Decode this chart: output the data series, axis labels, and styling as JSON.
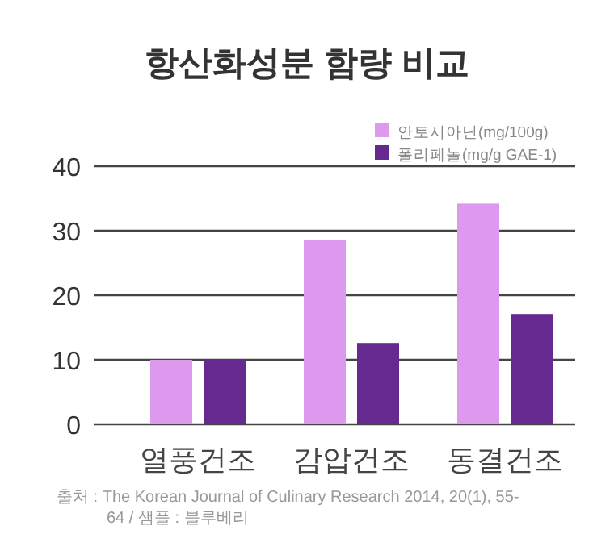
{
  "chart_data": {
    "type": "bar",
    "title": "항산화성분 함량 비교",
    "categories": [
      "열풍건조",
      "감압건조",
      "동결건조"
    ],
    "series": [
      {
        "name": "안토시아닌(mg/100g)",
        "color": "#dd99ee",
        "values": [
          10.0,
          28.5,
          34.2
        ]
      },
      {
        "name": "폴리페놀(mg/g GAE-1)",
        "color": "#66298f",
        "values": [
          10.0,
          12.6,
          17.1
        ]
      }
    ],
    "ylim": [
      0,
      40
    ],
    "yticks": [
      0,
      10,
      20,
      30,
      40
    ],
    "grid": "y",
    "legend": "top right",
    "annotations": [
      "출처 : The Korean Journal of Culinary Research 2014, 20(1), 55-64 / 샘플 : 블루베리"
    ]
  }
}
